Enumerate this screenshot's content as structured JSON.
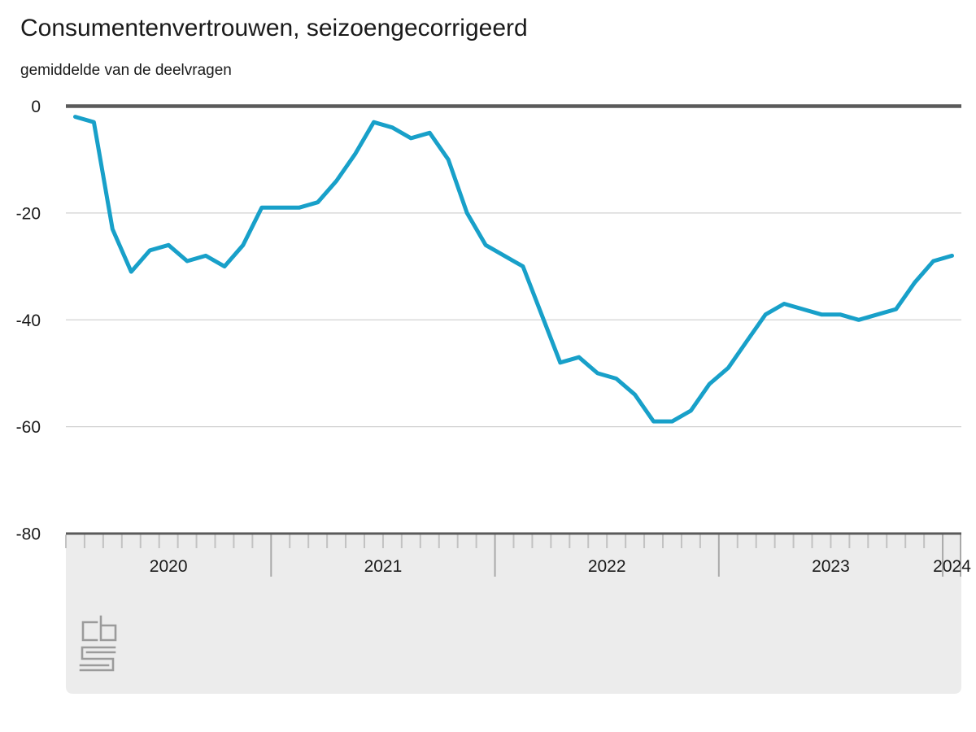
{
  "header": {
    "title": "Consumentenvertrouwen, seizoengecorrigeerd",
    "subtitle": "gemiddelde van de deelvragen"
  },
  "chart_data": {
    "type": "line",
    "title": "Consumentenvertrouwen, seizoengecorrigeerd",
    "subtitle": "gemiddelde van de deelvragen",
    "x_start": "2020-02",
    "x_end": "2024-01",
    "x_year_labels": [
      "2020",
      "2021",
      "2022",
      "2023",
      "2024"
    ],
    "y_ticks": [
      0,
      -20,
      -40,
      -60,
      -80
    ],
    "y_tick_labels": [
      "0",
      "-20",
      "-40",
      "-60",
      "-80"
    ],
    "ylim": [
      -80,
      0
    ],
    "grid": "horizontal",
    "legend": "none",
    "months": [
      "2020-02",
      "2020-03",
      "2020-04",
      "2020-05",
      "2020-06",
      "2020-07",
      "2020-08",
      "2020-09",
      "2020-10",
      "2020-11",
      "2020-12",
      "2021-01",
      "2021-02",
      "2021-03",
      "2021-04",
      "2021-05",
      "2021-06",
      "2021-07",
      "2021-08",
      "2021-09",
      "2021-10",
      "2021-11",
      "2021-12",
      "2022-01",
      "2022-02",
      "2022-03",
      "2022-04",
      "2022-05",
      "2022-06",
      "2022-07",
      "2022-08",
      "2022-09",
      "2022-10",
      "2022-11",
      "2022-12",
      "2023-01",
      "2023-02",
      "2023-03",
      "2023-04",
      "2023-05",
      "2023-06",
      "2023-07",
      "2023-08",
      "2023-09",
      "2023-10",
      "2023-11",
      "2023-12",
      "2024-01"
    ],
    "series": [
      {
        "name": "Consumentenvertrouwen",
        "color": "#18a0c9",
        "values": [
          -2,
          -3,
          -23,
          -31,
          -27,
          -26,
          -29,
          -28,
          -30,
          -26,
          -19,
          -19,
          -19,
          -18,
          -14,
          -9,
          -3,
          -4,
          -6,
          -5,
          -10,
          -20,
          -26,
          -28,
          -30,
          -39,
          -48,
          -47,
          -50,
          -51,
          -54,
          -59,
          -59,
          -57,
          -52,
          -49,
          -44,
          -39,
          -37,
          -38,
          -39,
          -39,
          -40,
          -39,
          -38,
          -33,
          -29,
          -28
        ]
      }
    ]
  },
  "colors": {
    "line": "#18a0c9",
    "zero_line": "#5a5a5a",
    "gridline": "#d2d2d2",
    "axis_band": "#ececec",
    "tick_small": "#c2c2c2",
    "tick_long": "#a9a9a9",
    "text": "#1a1a1a",
    "logo": "#9b9b9b"
  },
  "footer": {
    "logo": "cbs-logo"
  }
}
